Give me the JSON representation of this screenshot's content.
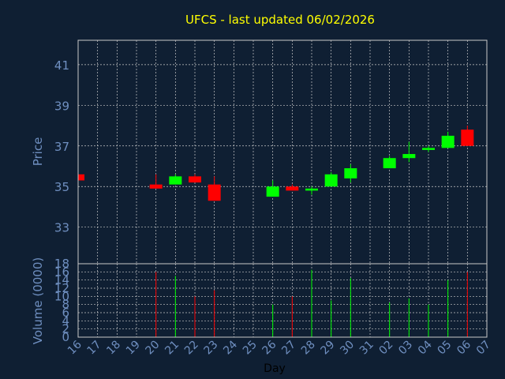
{
  "title": "UFCS - last updated 06/02/2026",
  "chart_data": [
    {
      "type": "candlestick",
      "ylabel": "Price",
      "ylim": [
        31.2,
        42.2
      ],
      "yticks": [
        "33",
        "35",
        "37",
        "39",
        "41"
      ],
      "up_color": "#00ff00",
      "down_color": "#ff0000",
      "categories": [
        "16",
        "17",
        "18",
        "19",
        "20",
        "21",
        "22",
        "23",
        "24",
        "25",
        "26",
        "27",
        "28",
        "29",
        "30",
        "31",
        "02",
        "03",
        "04",
        "05",
        "06",
        "07"
      ],
      "candles": [
        {
          "x": "16",
          "open": 35.6,
          "high": 35.6,
          "low": 35.3,
          "close": 35.3
        },
        {
          "x": "20",
          "open": 35.1,
          "high": 35.6,
          "low": 34.9,
          "close": 34.9
        },
        {
          "x": "21",
          "open": 35.1,
          "high": 35.6,
          "low": 35.1,
          "close": 35.5
        },
        {
          "x": "22",
          "open": 35.5,
          "high": 35.6,
          "low": 35.2,
          "close": 35.2
        },
        {
          "x": "23",
          "open": 35.1,
          "high": 35.5,
          "low": 34.3,
          "close": 34.3
        },
        {
          "x": "26",
          "open": 34.5,
          "high": 35.3,
          "low": 34.5,
          "close": 35.0
        },
        {
          "x": "27",
          "open": 35.0,
          "high": 35.1,
          "low": 34.8,
          "close": 34.8
        },
        {
          "x": "28",
          "open": 34.8,
          "high": 35.0,
          "low": 34.6,
          "close": 34.9
        },
        {
          "x": "29",
          "open": 35.0,
          "high": 35.7,
          "low": 35.0,
          "close": 35.6
        },
        {
          "x": "30",
          "open": 35.4,
          "high": 36.1,
          "low": 35.2,
          "close": 35.9
        },
        {
          "x": "02",
          "open": 35.9,
          "high": 36.5,
          "low": 35.9,
          "close": 36.4
        },
        {
          "x": "03",
          "open": 36.4,
          "high": 37.2,
          "low": 36.2,
          "close": 36.6
        },
        {
          "x": "04",
          "open": 36.8,
          "high": 37.0,
          "low": 36.7,
          "close": 36.9
        },
        {
          "x": "05",
          "open": 36.9,
          "high": 37.7,
          "low": 36.9,
          "close": 37.5
        },
        {
          "x": "06",
          "open": 37.8,
          "high": 38.0,
          "low": 37.0,
          "close": 37.0
        }
      ]
    },
    {
      "type": "bar",
      "ylabel": "Volume (0000)",
      "xlabel": "Day",
      "ylim": [
        0,
        18
      ],
      "yticks": [
        "0",
        "2",
        "4",
        "6",
        "8",
        "10",
        "12",
        "14",
        "16",
        "18"
      ],
      "volumes": [
        {
          "x": "20",
          "value": 16,
          "dir": "down"
        },
        {
          "x": "21",
          "value": 15,
          "dir": "up"
        },
        {
          "x": "22",
          "value": 10,
          "dir": "down"
        },
        {
          "x": "23",
          "value": 11.5,
          "dir": "down"
        },
        {
          "x": "26",
          "value": 8,
          "dir": "up"
        },
        {
          "x": "27",
          "value": 10,
          "dir": "down"
        },
        {
          "x": "28",
          "value": 16.5,
          "dir": "up"
        },
        {
          "x": "29",
          "value": 9,
          "dir": "up"
        },
        {
          "x": "30",
          "value": 14.5,
          "dir": "up"
        },
        {
          "x": "02",
          "value": 8.5,
          "dir": "up"
        },
        {
          "x": "03",
          "value": 9.5,
          "dir": "up"
        },
        {
          "x": "04",
          "value": 8,
          "dir": "up"
        },
        {
          "x": "05",
          "value": 14,
          "dir": "up"
        },
        {
          "x": "06",
          "value": 16,
          "dir": "down"
        }
      ]
    }
  ]
}
